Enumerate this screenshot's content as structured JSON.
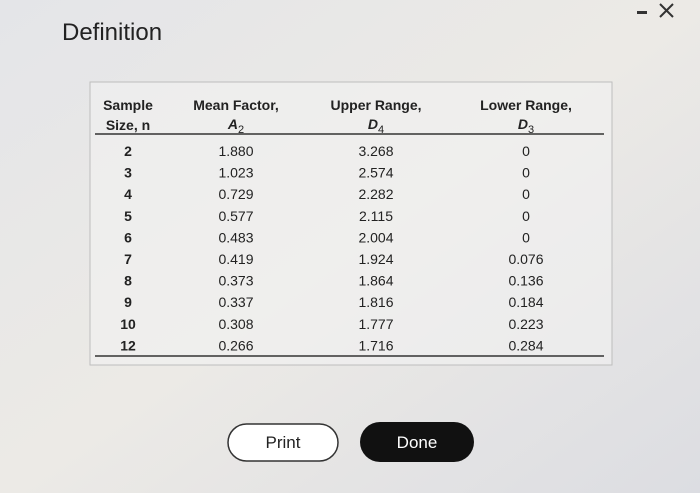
{
  "title": "Definition",
  "table": {
    "headers": [
      {
        "lines": [
          "Sample",
          "Size, n"
        ]
      },
      {
        "lines": [
          "Mean Factor,"
        ],
        "symbol": "A",
        "subscript": "2"
      },
      {
        "lines": [
          "Upper Range,"
        ],
        "symbol": "D",
        "subscript": "4"
      },
      {
        "lines": [
          "Lower Range,"
        ],
        "symbol": "D",
        "subscript": "3"
      }
    ],
    "rows": [
      [
        "2",
        "1.880",
        "3.268",
        "0"
      ],
      [
        "3",
        "1.023",
        "2.574",
        "0"
      ],
      [
        "4",
        "0.729",
        "2.282",
        "0"
      ],
      [
        "5",
        "0.577",
        "2.115",
        "0"
      ],
      [
        "6",
        "0.483",
        "2.004",
        "0"
      ],
      [
        "7",
        "0.419",
        "1.924",
        "0.076"
      ],
      [
        "8",
        "0.373",
        "1.864",
        "0.136"
      ],
      [
        "9",
        "0.337",
        "1.816",
        "0.184"
      ],
      [
        "10",
        "0.308",
        "1.777",
        "0.223"
      ],
      [
        "12",
        "0.266",
        "1.716",
        "0.284"
      ]
    ]
  },
  "buttons": {
    "print": "Print",
    "done": "Done"
  }
}
